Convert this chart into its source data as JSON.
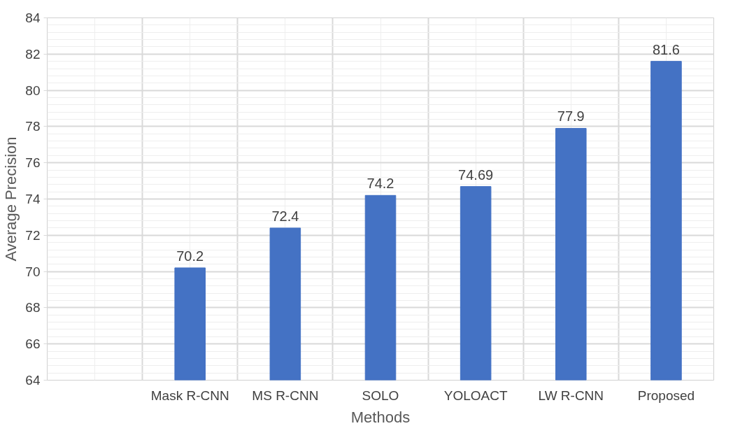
{
  "chart_data": {
    "type": "bar",
    "xlabel": "Methods",
    "ylabel": "Average Precision",
    "categories": [
      null,
      "Mask R-CNN",
      "MS R-CNN",
      "SOLO",
      "YOLOACT",
      "LW R-CNN",
      "Proposed"
    ],
    "values": [
      null,
      70.2,
      72.4,
      74.2,
      74.69,
      77.9,
      81.6
    ],
    "color": "#4472c4",
    "ylim": [
      64,
      84
    ],
    "yticks": [
      64,
      66,
      68,
      70,
      72,
      74,
      76,
      78,
      80,
      82,
      84
    ],
    "grid": true,
    "data_labels": true
  }
}
